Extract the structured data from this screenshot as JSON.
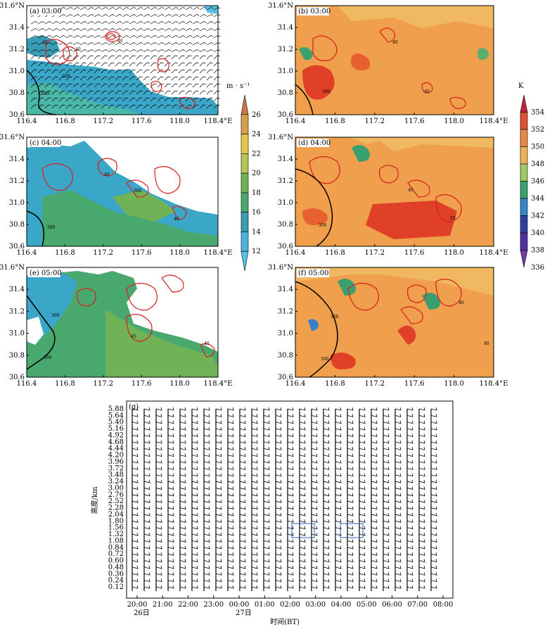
{
  "panels": [
    {
      "id": "a",
      "label": "(a) 03:00",
      "type": "wind_speed"
    },
    {
      "id": "b",
      "label": "(b) 03:00",
      "type": "theta_e"
    },
    {
      "id": "c",
      "label": "(c) 04:00",
      "type": "wind_speed"
    },
    {
      "id": "d",
      "label": "(d) 04:00",
      "type": "theta_e"
    },
    {
      "id": "e",
      "label": "(e) 05:00",
      "type": "wind_speed"
    },
    {
      "id": "f",
      "label": "(f) 05:00",
      "type": "theta_e"
    }
  ],
  "map_axes": {
    "x_ticks": [
      "116.4",
      "116.8",
      "117.2",
      "117.6",
      "118.0",
      "118.4°E"
    ],
    "y_ticks": [
      "30.6",
      "30.8",
      "31.0",
      "31.2",
      "31.4",
      "31.6°N"
    ],
    "xlim": [
      116.4,
      118.4
    ],
    "ylim": [
      30.6,
      31.6
    ]
  },
  "contour_labels": {
    "reflectivity": [
      "40",
      "45",
      "50"
    ],
    "terrain": "300"
  },
  "colorbar_wind": {
    "unit": "m · s⁻¹",
    "ticks": [
      "26",
      "24",
      "22",
      "20",
      "18",
      "16",
      "14",
      "12"
    ],
    "colors": [
      "#c8764a",
      "#d6a048",
      "#e0c84c",
      "#b8c454",
      "#6fb356",
      "#48a86e",
      "#3a9cb4",
      "#4ab2dc",
      "#58c0e8"
    ]
  },
  "colorbar_theta": {
    "unit": "K",
    "ticks": [
      "354",
      "352",
      "350",
      "348",
      "346",
      "344",
      "342",
      "340",
      "338",
      "336"
    ],
    "colors": [
      "#c8203c",
      "#e05030",
      "#e88844",
      "#f0b058",
      "#a0c864",
      "#3aa070",
      "#3884c8",
      "#3040a0",
      "#5030a0",
      "#7838a8"
    ]
  },
  "profiler": {
    "label": "(g)",
    "ylabel": "高度/km",
    "xlabel": "时间(BT)",
    "heights": [
      "5.88",
      "5.64",
      "5.40",
      "5.16",
      "4.92",
      "4.68",
      "4.44",
      "4.20",
      "3.96",
      "3.72",
      "3.48",
      "3.24",
      "3.00",
      "2.76",
      "2.52",
      "2.28",
      "2.04",
      "1.80",
      "1.56",
      "1.32",
      "1.08",
      "0.84",
      "0.72",
      "0.60",
      "0.48",
      "0.36",
      "0.24",
      "0.12"
    ],
    "times": [
      "20:00",
      "21:00",
      "22:00",
      "23:00",
      "00:00",
      "01:00",
      "02:00",
      "03:00",
      "04:00",
      "05:00",
      "06:00",
      "07:00",
      "08:00"
    ],
    "date_labels": [
      {
        "time": "20:00",
        "text": "26日"
      },
      {
        "time": "00:00",
        "text": "27日"
      }
    ]
  },
  "chart_data": {
    "type": "heatmap",
    "panels": [
      {
        "id": "a",
        "time": "03:00",
        "field": "wind speed",
        "unit": "m · s⁻¹",
        "range": [
          12,
          26
        ]
      },
      {
        "id": "b",
        "time": "03:00",
        "field": "theta_e",
        "unit": "K",
        "range": [
          336,
          354
        ]
      },
      {
        "id": "c",
        "time": "04:00",
        "field": "wind speed",
        "unit": "m · s⁻¹",
        "range": [
          12,
          26
        ]
      },
      {
        "id": "d",
        "time": "04:00",
        "field": "theta_e",
        "unit": "K",
        "range": [
          336,
          354
        ]
      },
      {
        "id": "e",
        "time": "05:00",
        "field": "wind speed",
        "unit": "m · s⁻¹",
        "range": [
          12,
          26
        ]
      },
      {
        "id": "f",
        "time": "05:00",
        "field": "theta_e",
        "unit": "K",
        "range": [
          336,
          354
        ]
      }
    ],
    "xlim": [
      116.4,
      118.4
    ],
    "ylim": [
      30.6,
      31.6
    ],
    "reflectivity_contours": [
      40,
      45,
      50
    ],
    "terrain_contour": 300,
    "profiler_heights_km": [
      0.12,
      0.24,
      0.36,
      0.48,
      0.6,
      0.72,
      0.84,
      1.08,
      1.32,
      1.56,
      1.8,
      2.04,
      2.28,
      2.52,
      2.76,
      3.0,
      3.24,
      3.48,
      3.72,
      3.96,
      4.2,
      4.44,
      4.68,
      4.92,
      5.16,
      5.4,
      5.64,
      5.88
    ],
    "profiler_times": [
      "20:00",
      "21:00",
      "22:00",
      "23:00",
      "00:00",
      "01:00",
      "02:00",
      "03:00",
      "04:00",
      "05:00",
      "06:00",
      "07:00",
      "08:00"
    ]
  }
}
